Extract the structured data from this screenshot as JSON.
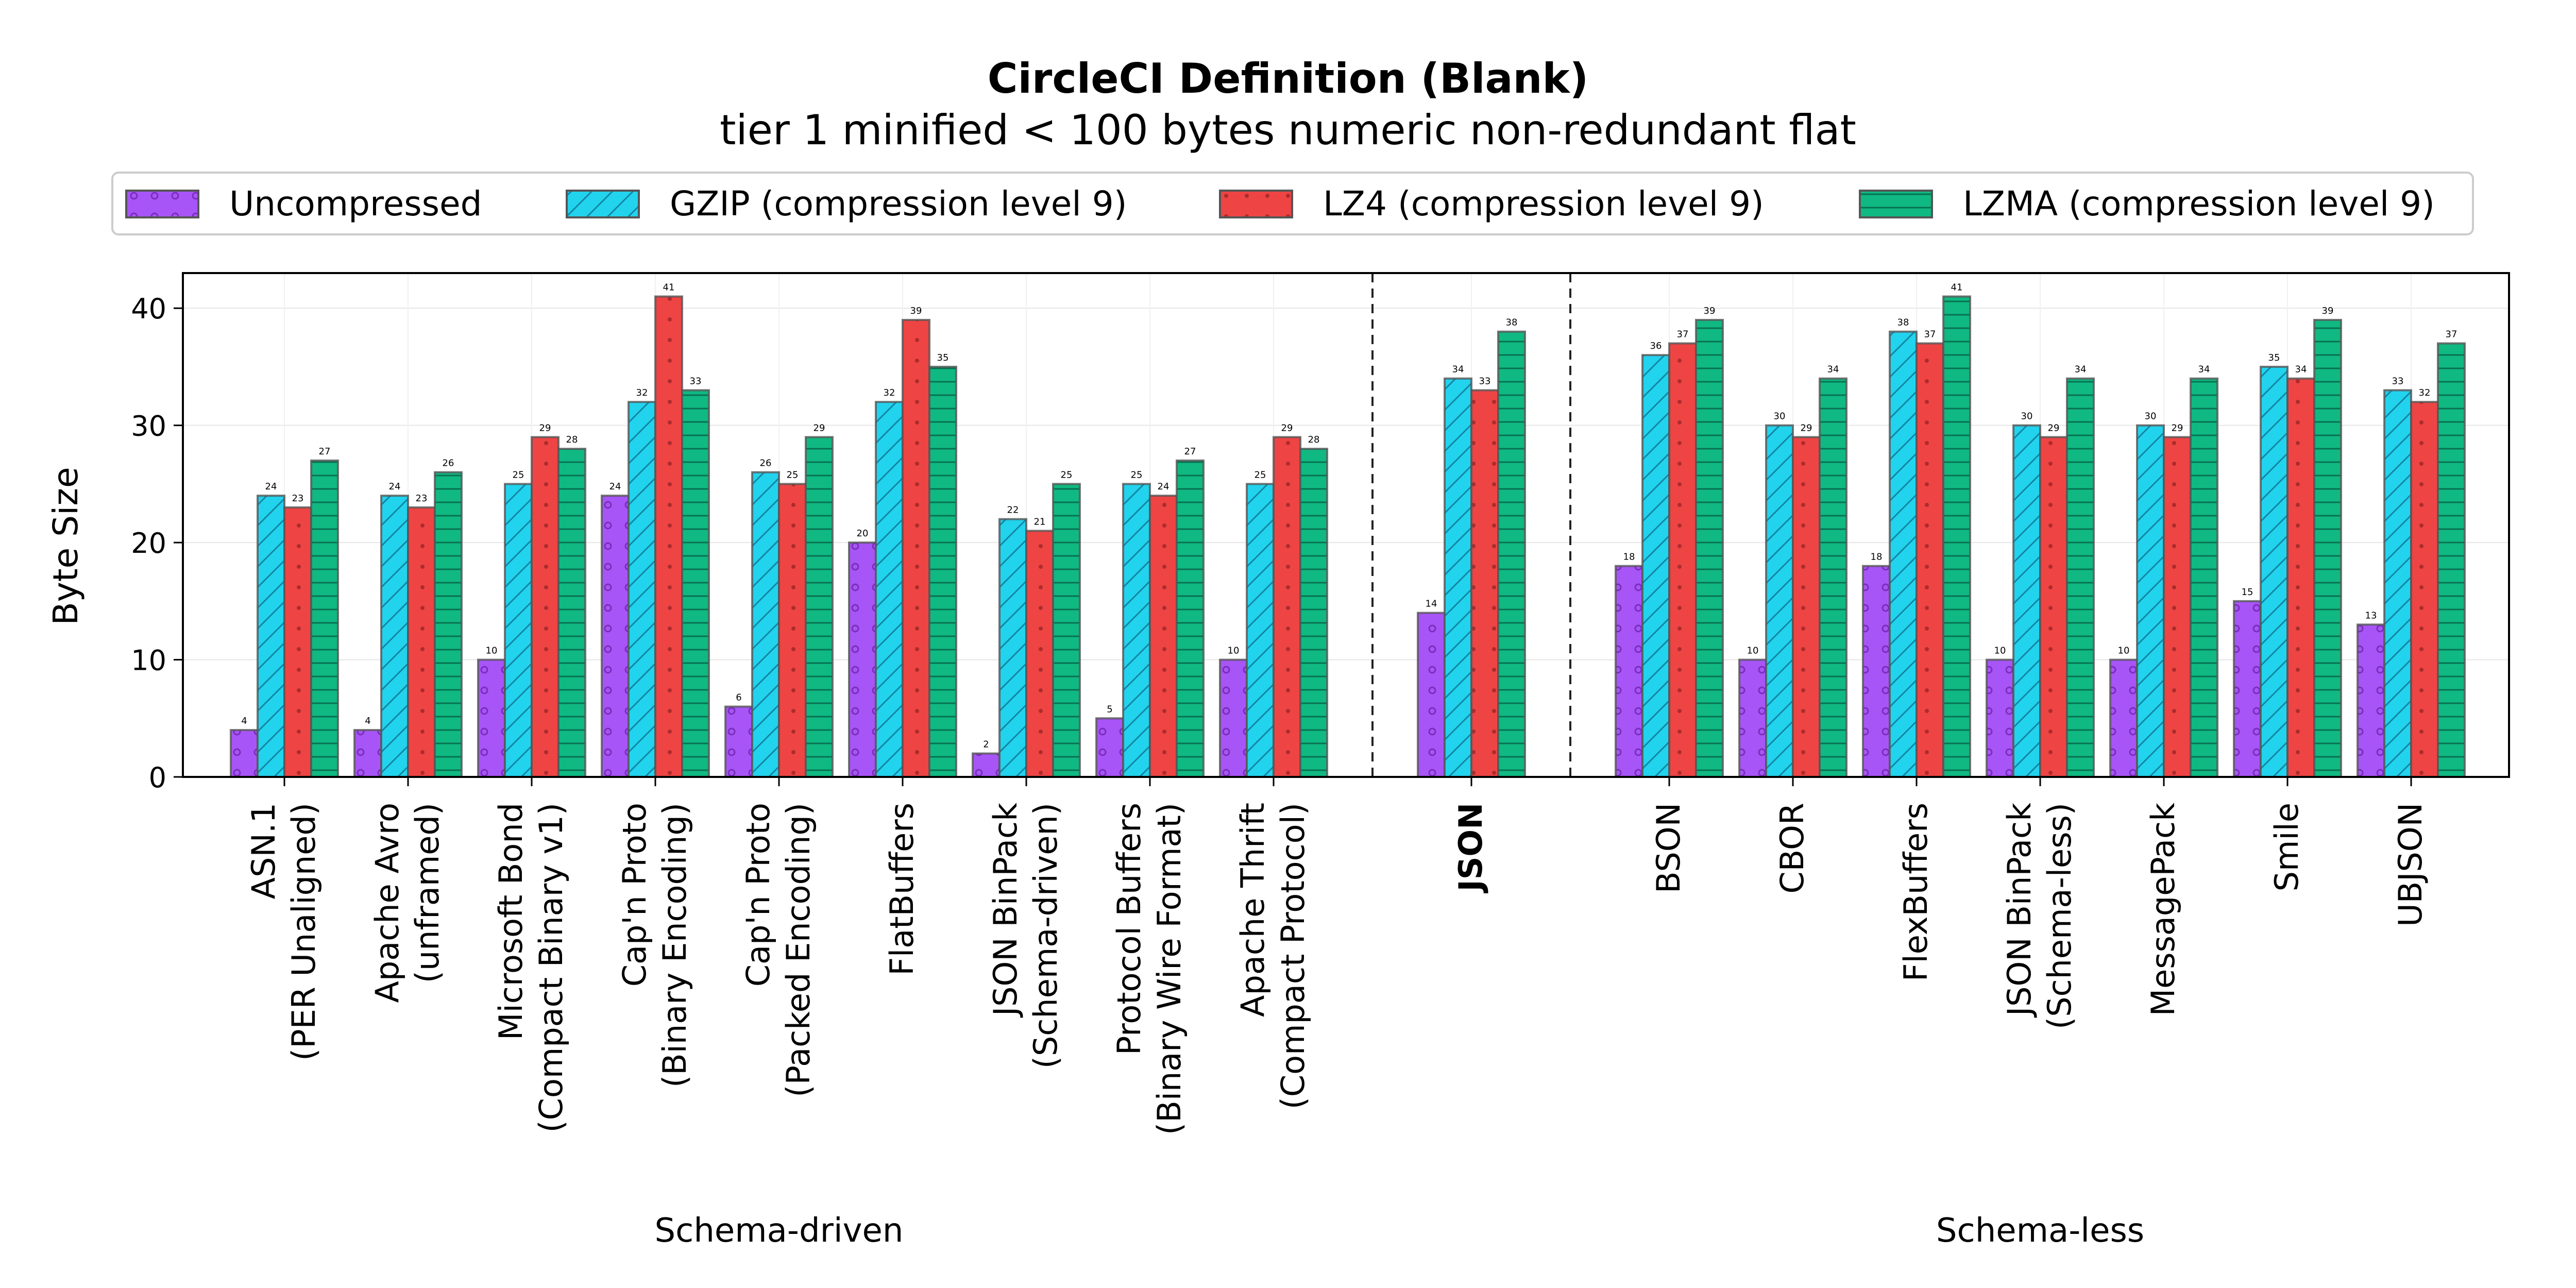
{
  "chart_data": {
    "type": "bar",
    "title": "CircleCI Definition (Blank)",
    "subtitle": "tier 1 minified < 100 bytes numeric non-redundant flat",
    "ylabel": "Byte Size",
    "ylim": [
      0,
      43
    ],
    "yticks": [
      0,
      10,
      20,
      30,
      40
    ],
    "grid": true,
    "legend_position": "top-center",
    "categories": [
      [
        "ASN.1",
        "(PER Unaligned)"
      ],
      [
        "Apache Avro",
        "(unframed)"
      ],
      [
        "Microsoft Bond",
        "(Compact Binary v1)"
      ],
      [
        "Cap'n Proto",
        "(Binary Encoding)"
      ],
      [
        "Cap'n Proto",
        "(Packed Encoding)"
      ],
      [
        "FlatBuffers"
      ],
      [
        "JSON BinPack",
        "(Schema-driven)"
      ],
      [
        "Protocol Buffers",
        "(Binary Wire Format)"
      ],
      [
        "Apache Thrift",
        "(Compact Protocol)"
      ],
      [
        "JSON"
      ],
      [
        "BSON"
      ],
      [
        "CBOR"
      ],
      [
        "FlexBuffers"
      ],
      [
        "JSON BinPack",
        "(Schema-less)"
      ],
      [
        "MessagePack"
      ],
      [
        "Smile"
      ],
      [
        "UBJSON"
      ]
    ],
    "highlight_category": 9,
    "groups": [
      {
        "label": "Schema-driven",
        "from": 0,
        "to": 8
      },
      {
        "label": "Schema-less",
        "from": 10,
        "to": 16
      }
    ],
    "series": [
      {
        "name": "Uncompressed",
        "color": "#a855f7",
        "pattern": "circles",
        "values": [
          4,
          4,
          10,
          24,
          6,
          20,
          2,
          5,
          10,
          14,
          18,
          10,
          18,
          10,
          10,
          15,
          13
        ]
      },
      {
        "name": "GZIP (compression level 9)",
        "color": "#22d3ee",
        "pattern": "diagonal",
        "values": [
          24,
          24,
          25,
          32,
          26,
          32,
          22,
          25,
          25,
          34,
          36,
          30,
          38,
          30,
          30,
          35,
          33
        ]
      },
      {
        "name": "LZ4 (compression level 9)",
        "color": "#ef4444",
        "pattern": "dots",
        "values": [
          23,
          23,
          29,
          41,
          25,
          39,
          21,
          24,
          29,
          33,
          37,
          29,
          37,
          29,
          29,
          34,
          32
        ]
      },
      {
        "name": "LZMA (compression level 9)",
        "color": "#10b981",
        "pattern": "horizontal",
        "values": [
          27,
          26,
          28,
          33,
          29,
          35,
          25,
          27,
          28,
          38,
          39,
          34,
          41,
          34,
          34,
          39,
          37
        ]
      }
    ]
  }
}
